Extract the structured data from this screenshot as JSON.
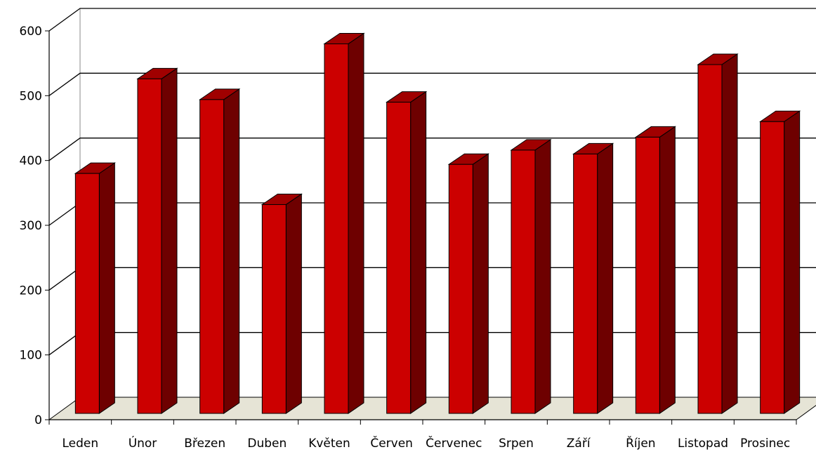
{
  "chart_data": {
    "type": "bar",
    "title": "",
    "xlabel": "",
    "ylabel": "",
    "categories": [
      "Leden",
      "Únor",
      "Březen",
      "Duben",
      "Květen",
      "Červen",
      "Červenec",
      "Srpen",
      "Září",
      "Říjen",
      "Listopad",
      "Prosinec"
    ],
    "values": [
      380,
      526,
      494,
      332,
      580,
      490,
      394,
      416,
      410,
      436,
      548,
      460
    ],
    "ylim": [
      0,
      600
    ],
    "yticks": [
      0,
      100,
      200,
      300,
      400,
      500,
      600
    ],
    "grid": true,
    "legend": "none",
    "three_d": true,
    "colors": {
      "bar_front": "#cc0000",
      "bar_side": "#6e0000",
      "bar_top": "#a00000",
      "floor": "#e6e4d6"
    }
  }
}
